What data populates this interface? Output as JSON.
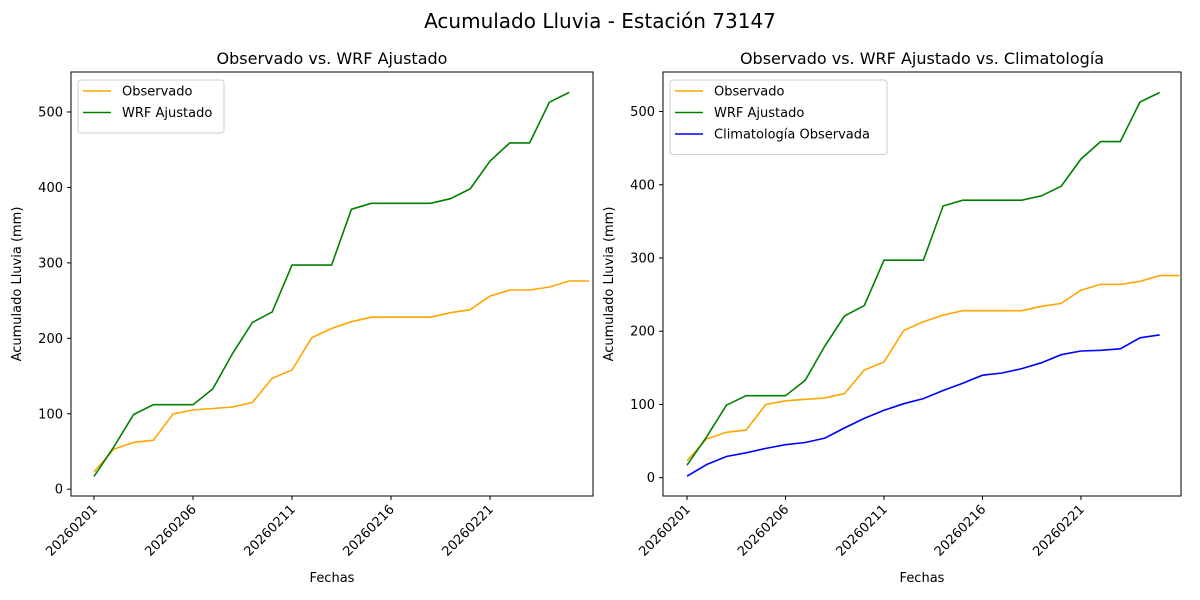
{
  "suptitle": "Acumulado Lluvia - Estación 73147",
  "chart_data": [
    {
      "type": "line",
      "title": "Observado vs. WRF Ajustado",
      "xlabel": "Fechas",
      "ylabel": "Acumulado Lluvia (mm)",
      "ylim": [
        -9,
        553
      ],
      "xlim": [
        -1.16,
        25.2
      ],
      "yticks": [
        0,
        100,
        200,
        300,
        400,
        500
      ],
      "xticks": [
        0,
        5,
        10,
        15,
        20
      ],
      "xticklabels": [
        "20260201",
        "20260206",
        "20260211",
        "20260216",
        "20260221"
      ],
      "legend": "top-left",
      "grid": false,
      "series": [
        {
          "name": "Observado",
          "color": "#ffa500",
          "values": [
            23,
            53,
            62,
            65,
            100,
            105,
            107,
            109,
            115,
            147,
            158,
            201,
            213,
            222,
            228,
            228,
            228,
            228,
            234,
            238,
            256,
            264,
            264,
            268,
            276,
            276
          ]
        },
        {
          "name": "WRF Ajustado",
          "color": "#008000",
          "values": [
            17,
            56,
            99,
            112,
            112,
            112,
            133,
            180,
            221,
            235,
            297,
            297,
            297,
            371,
            379,
            379,
            379,
            379,
            385,
            398,
            435,
            459,
            459,
            513,
            526
          ]
        }
      ]
    },
    {
      "type": "line",
      "title": "Observado vs. WRF Ajustado vs. Climatología",
      "xlabel": "Fechas",
      "ylabel": "Acumulado Lluvia (mm)",
      "ylim": [
        -25,
        554
      ],
      "xlim": [
        -1.22,
        25.08
      ],
      "yticks": [
        0,
        100,
        200,
        300,
        400,
        500
      ],
      "xticks": [
        0,
        5,
        10,
        15,
        20
      ],
      "xticklabels": [
        "20260201",
        "20260206",
        "20260211",
        "20260216",
        "20260221"
      ],
      "legend": "top-left",
      "grid": false,
      "series": [
        {
          "name": "Observado",
          "color": "#ffa500",
          "values": [
            23,
            53,
            62,
            65,
            100,
            105,
            107,
            109,
            115,
            147,
            158,
            201,
            213,
            222,
            228,
            228,
            228,
            228,
            234,
            238,
            256,
            264,
            264,
            268,
            276,
            276
          ]
        },
        {
          "name": "WRF Ajustado",
          "color": "#008000",
          "values": [
            17,
            56,
            99,
            112,
            112,
            112,
            133,
            180,
            221,
            235,
            297,
            297,
            297,
            371,
            379,
            379,
            379,
            379,
            385,
            398,
            435,
            459,
            459,
            513,
            526
          ]
        },
        {
          "name": "Climatología Observada",
          "color": "#0000ff",
          "values": [
            2,
            18,
            29,
            34,
            40,
            45,
            48,
            54,
            68,
            81,
            92,
            101,
            108,
            119,
            129,
            140,
            143,
            149,
            157,
            168,
            173,
            174,
            176,
            191,
            195
          ]
        }
      ]
    }
  ]
}
